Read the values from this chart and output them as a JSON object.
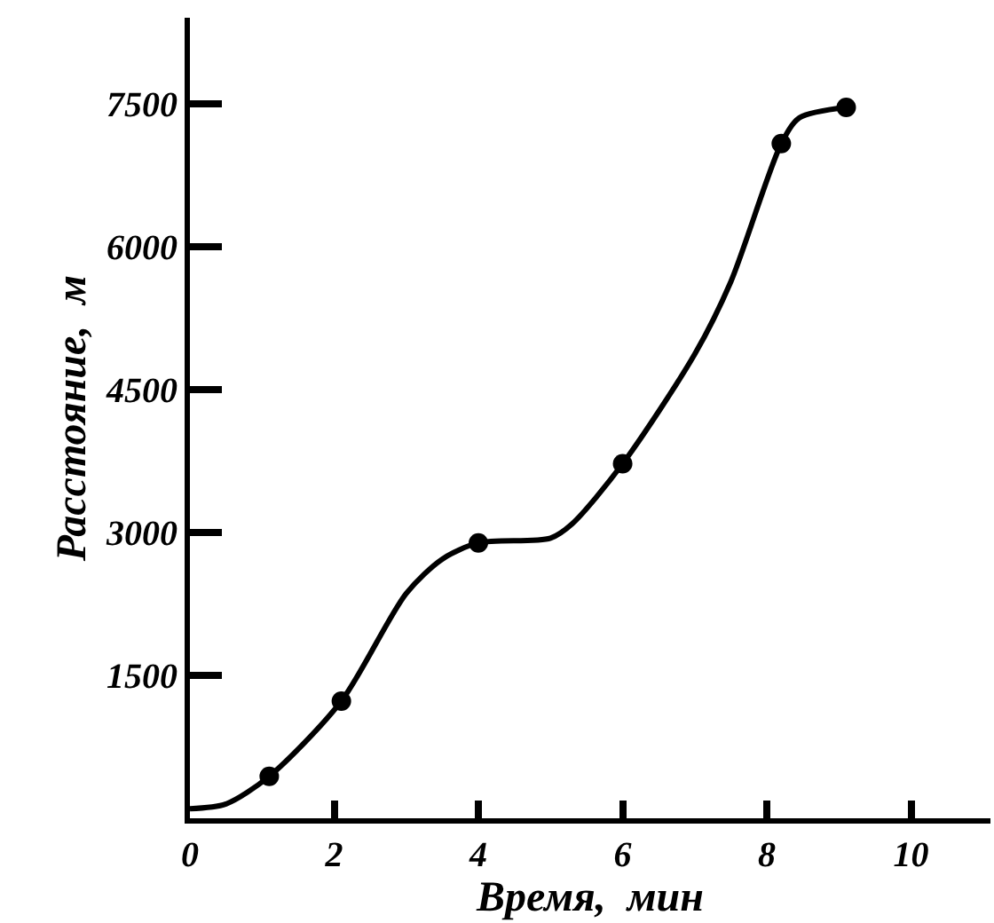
{
  "chart_data": {
    "type": "line",
    "xlabel": "Время,  мин",
    "ylabel": "Расстояние,  м",
    "xlim": [
      0,
      11.1
    ],
    "ylim": [
      0,
      8400
    ],
    "xticks": [
      0,
      2,
      4,
      6,
      8,
      10
    ],
    "yticks": [
      1500,
      3000,
      4500,
      6000,
      7500
    ],
    "series": [
      {
        "color": "#000000",
        "marker": "none",
        "x": [
          0,
          0.5,
          1.1,
          2.1,
          3,
          3.5,
          4,
          5,
          5.3,
          6,
          7,
          7.5,
          8.2,
          8.45,
          9.1
        ],
        "values": [
          100,
          150,
          440,
          1230,
          2360,
          2720,
          2890,
          2940,
          3090,
          3720,
          4870,
          5630,
          7080,
          7350,
          7460
        ]
      },
      {
        "type": "scatter",
        "color": "#000000",
        "marker": "circle",
        "x": [
          1.1,
          2.1,
          4,
          6,
          8.2,
          9.1
        ],
        "values": [
          440,
          1230,
          2890,
          3720,
          7080,
          7460
        ]
      }
    ]
  }
}
